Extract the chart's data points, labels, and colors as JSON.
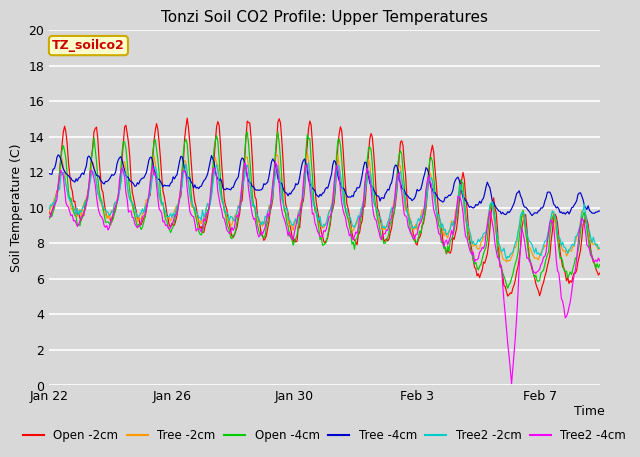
{
  "title": "Tonzi Soil CO2 Profile: Upper Temperatures",
  "xlabel": "Time",
  "ylabel": "Soil Temperature (C)",
  "ylim": [
    0,
    20
  ],
  "yticks": [
    0,
    2,
    4,
    6,
    8,
    10,
    12,
    14,
    16,
    18,
    20
  ],
  "bg_color": "#d8d8d8",
  "plot_bg_color": "#d8d8d8",
  "grid_color": "#ffffff",
  "legend_label": "TZ_soilco2",
  "legend_box_color": "#ffffcc",
  "legend_box_edge": "#ccaa00",
  "series": [
    {
      "label": "Open -2cm",
      "color": "#ff0000"
    },
    {
      "label": "Tree -2cm",
      "color": "#ff9900"
    },
    {
      "label": "Open -4cm",
      "color": "#00cc00"
    },
    {
      "label": "Tree -4cm",
      "color": "#0000cc"
    },
    {
      "label": "Tree2 -2cm",
      "color": "#00cccc"
    },
    {
      "label": "Tree2 -4cm",
      "color": "#ff00ff"
    }
  ],
  "xtick_labels": [
    "Jan 22",
    "Jan 26",
    "Jan 30",
    "Feb 3",
    "Feb 7"
  ],
  "xtick_positions": [
    0,
    96,
    192,
    288,
    384
  ],
  "total_points": 432
}
